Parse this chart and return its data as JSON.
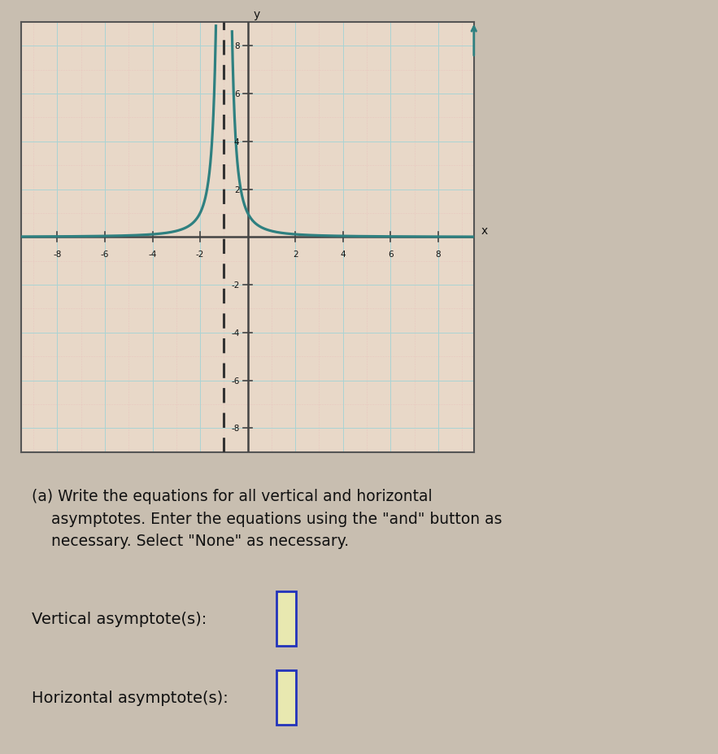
{
  "graph_xlim": [
    -9.5,
    9.5
  ],
  "graph_ylim": [
    -9,
    9
  ],
  "xticks": [
    -8,
    -6,
    -4,
    -2,
    2,
    4,
    6,
    8
  ],
  "yticks": [
    -8,
    -6,
    -4,
    -2,
    2,
    4,
    6,
    8
  ],
  "vertical_asymptote_x": -1,
  "curve_color": "#2e8080",
  "asymptote_color": "#333333",
  "grid_major_color": "#aad4d4",
  "grid_dot_color": "#e8b8b8",
  "graph_bg": "#e8d8c8",
  "axis_color": "#444444",
  "text_color": "#111111",
  "graph_border_color": "#555555",
  "outer_bg": "#c8beb0",
  "text_panel_bg": "#ddd8cc",
  "text_panel_border": "#888888",
  "input_box_fill": "#e8e8b0",
  "input_box_border": "#2233bb",
  "label_vertical": "Vertical asymptote(s):",
  "label_horizontal": "Horizontal asymptote(s):",
  "line1": "(a) Write the equations for all vertical and horizontal",
  "line2": "    asymptotes. Enter the equations using the \"and\" button as",
  "line3": "    necessary. Select \"None\" as necessary."
}
